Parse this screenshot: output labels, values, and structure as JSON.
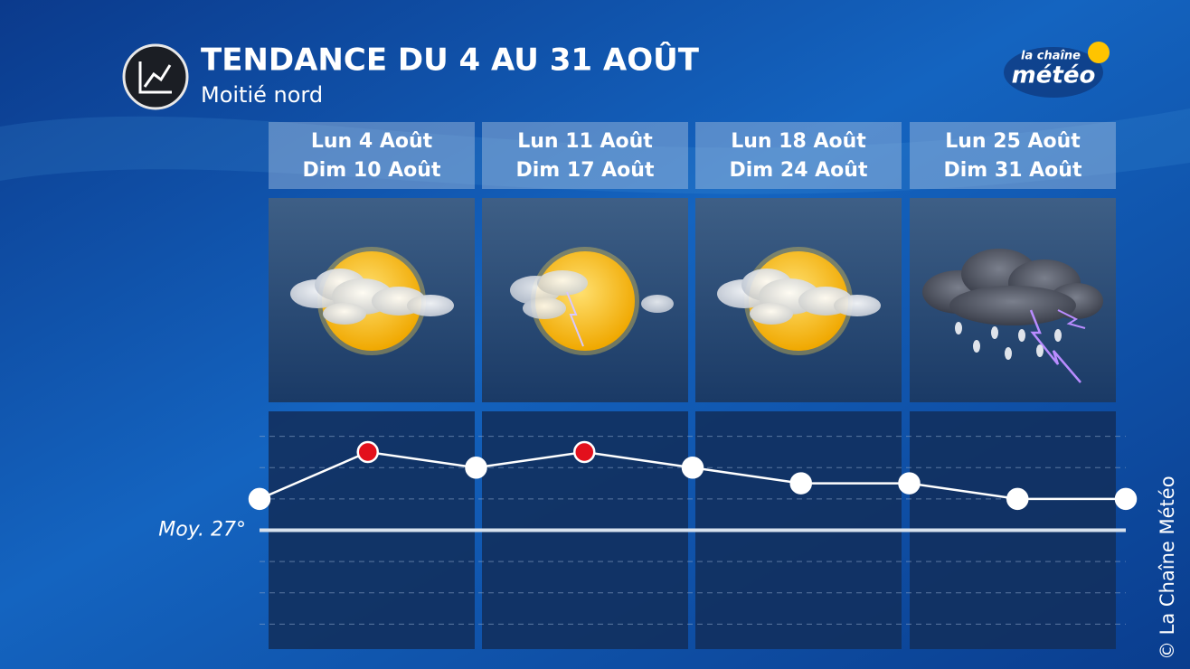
{
  "header": {
    "title": "TENDANCE DU 4 AU 31 AOÛT",
    "subtitle": "Moitié nord",
    "logo_top": "la chaîne",
    "logo_main": "météo"
  },
  "columns": [
    {
      "start": "Lun 4 Août",
      "end": "Dim 10 Août",
      "weather": "sun-clouds"
    },
    {
      "start": "Lun 11 Août",
      "end": "Dim 17 Août",
      "weather": "sun-storm"
    },
    {
      "start": "Lun 18 Août",
      "end": "Dim 24 Août",
      "weather": "sun-clouds"
    },
    {
      "start": "Lun 25 Août",
      "end": "Dim 31 Août",
      "weather": "storm-rain"
    }
  ],
  "chart_data": {
    "type": "line",
    "values": [
      28,
      29.5,
      29,
      29.5,
      29,
      28.5,
      28.5,
      28,
      28
    ],
    "marker_colors": [
      "#ffffff",
      "#e3101c",
      "#ffffff",
      "#e3101c",
      "#ffffff",
      "#ffffff",
      "#ffffff",
      "#ffffff",
      "#ffffff"
    ],
    "line_color": "#ffffff",
    "ylim": [
      23.2,
      30.8
    ],
    "gridlines": [
      24,
      25,
      26,
      28,
      29,
      30
    ],
    "average": {
      "value": 27,
      "label": "Moy. 27°"
    }
  },
  "copyright": "© La Chaîne Météo"
}
